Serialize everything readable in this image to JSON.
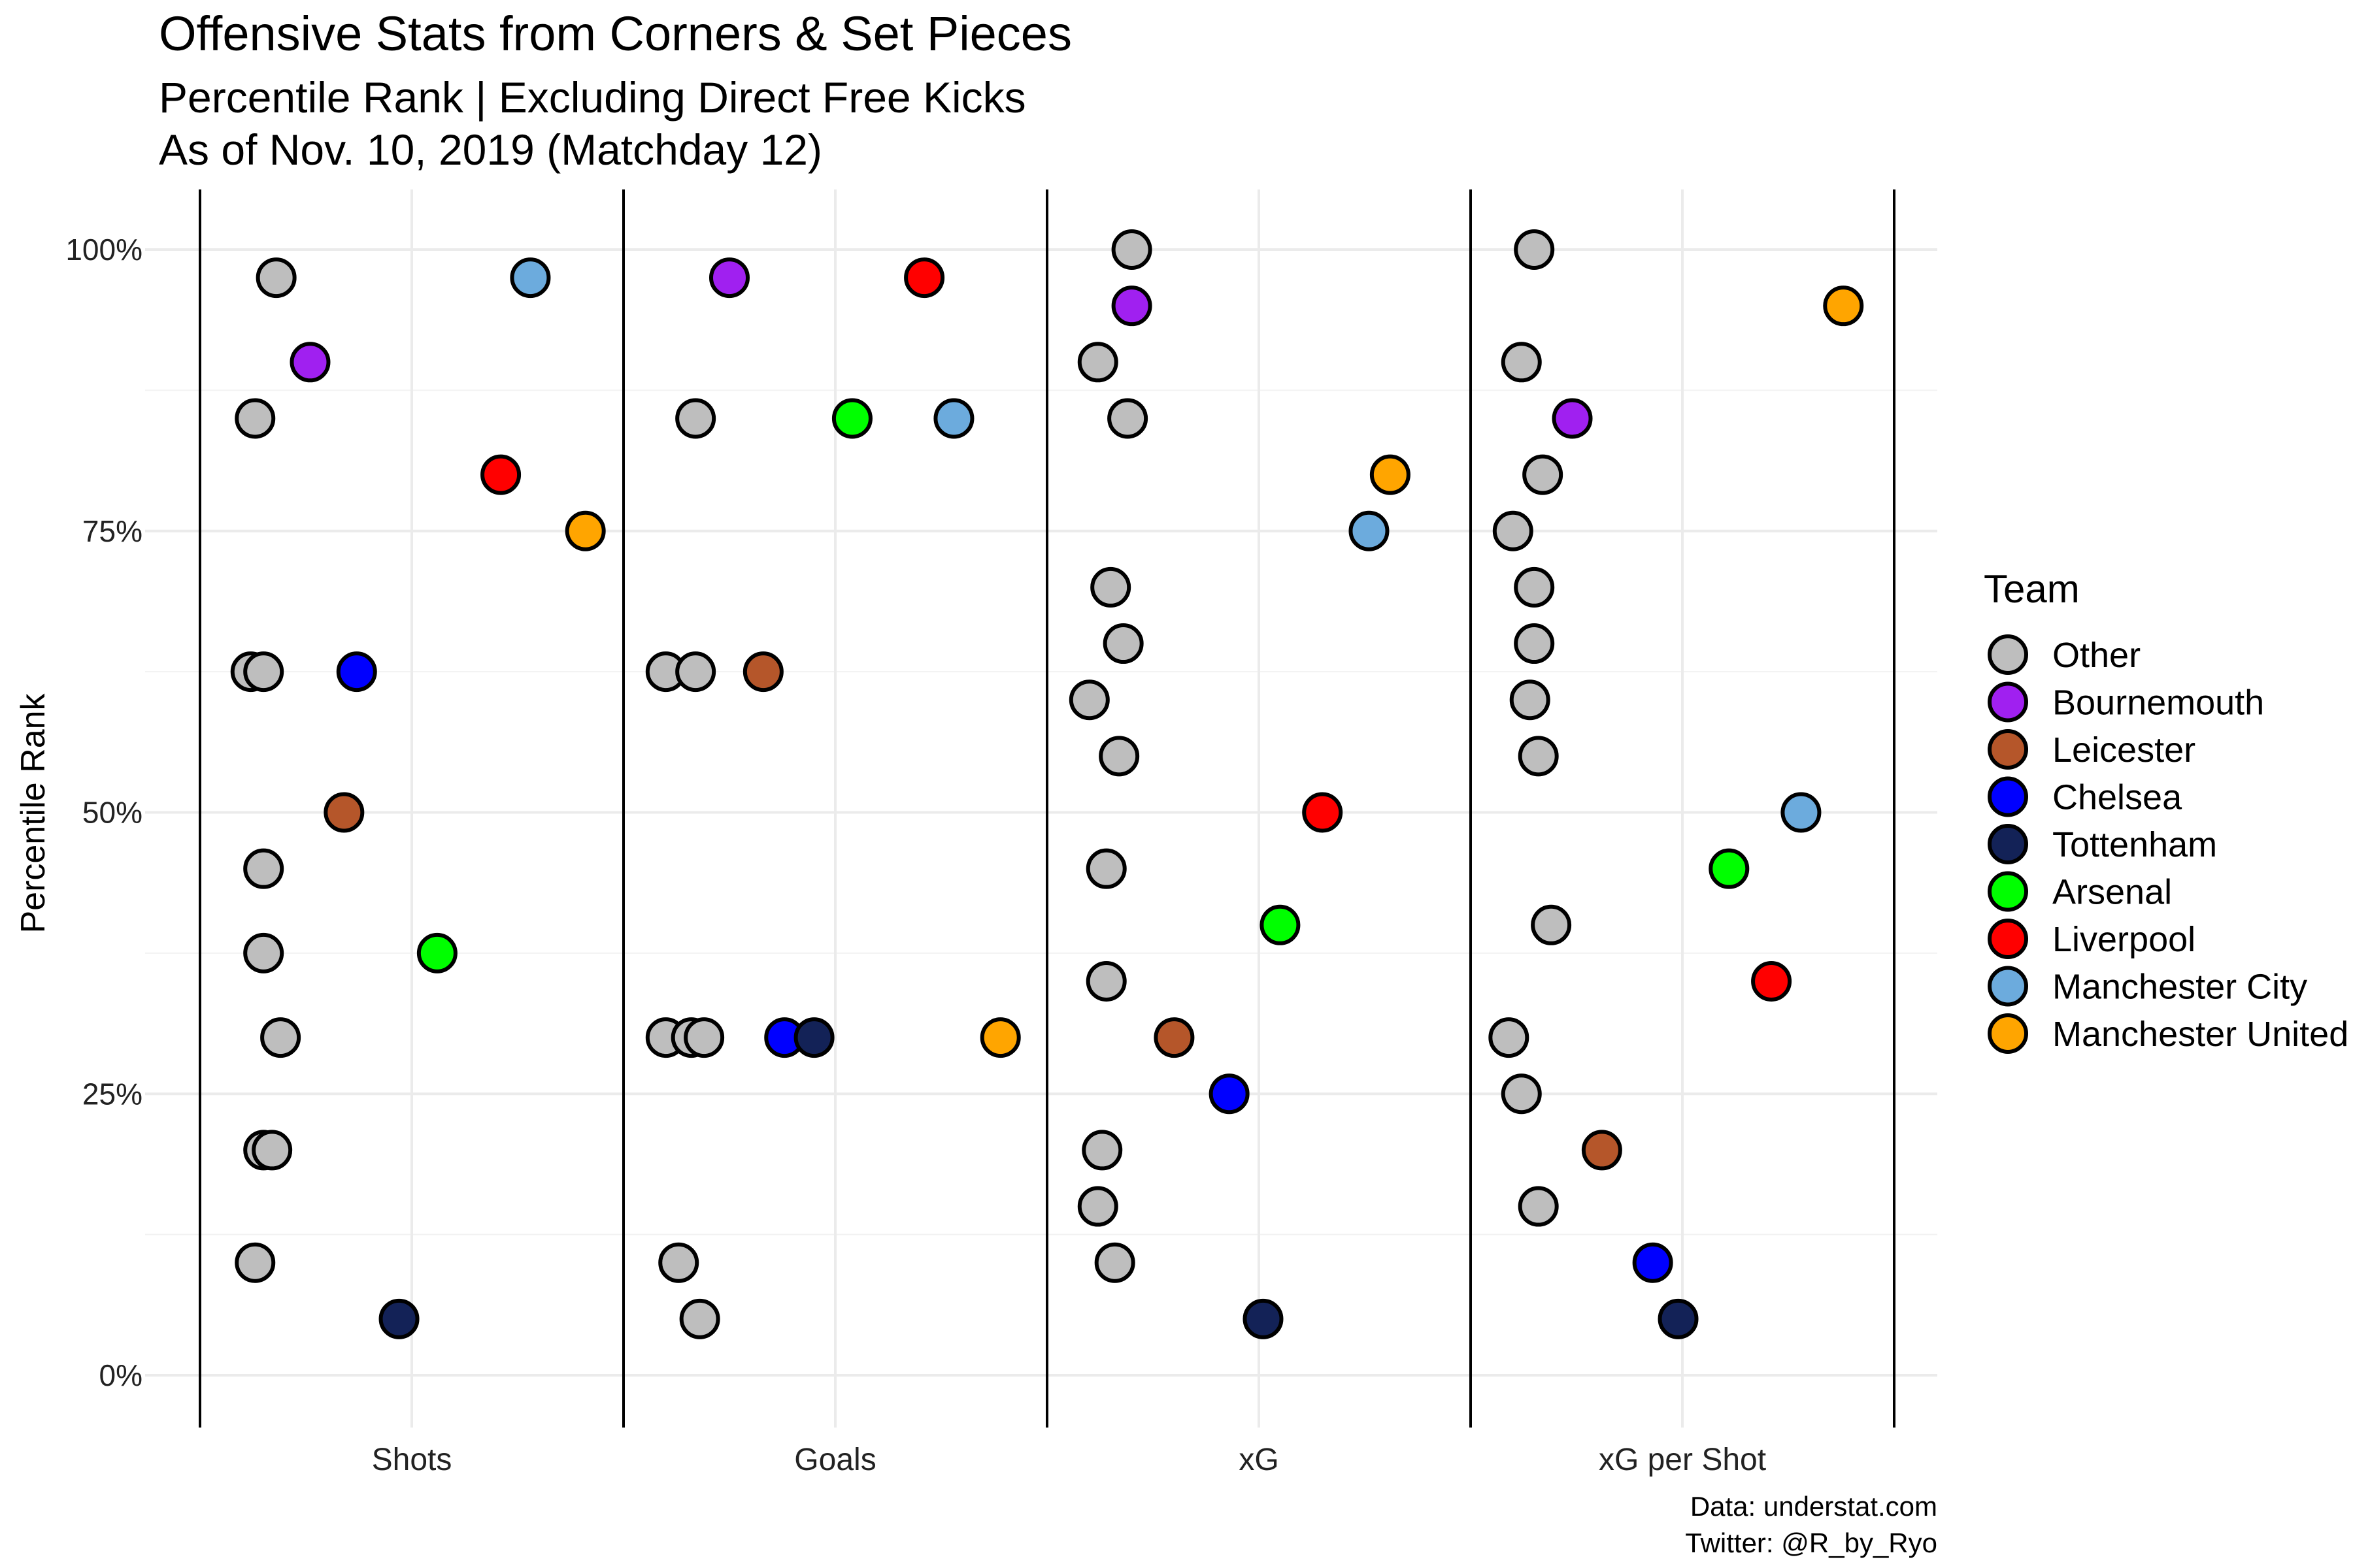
{
  "chart_data": {
    "type": "scatter",
    "title": "Offensive Stats from Corners & Set Pieces",
    "subtitle_lines": [
      "Percentile Rank | Excluding Direct Free Kicks",
      "As of Nov. 10, 2019 (Matchday 12)"
    ],
    "ylabel": "Percentile Rank",
    "ylim": [
      0,
      100
    ],
    "yticks": [
      "0%",
      "25%",
      "50%",
      "75%",
      "100%"
    ],
    "categories": [
      "Shots",
      "Goals",
      "xG",
      "xG per Shot"
    ],
    "grid": true,
    "legend": {
      "title": "Team",
      "position": "right",
      "items": [
        {
          "name": "Other",
          "color": "#bebebe"
        },
        {
          "name": "Bournemouth",
          "color": "#a020f0"
        },
        {
          "name": "Leicester",
          "color": "#b5562a"
        },
        {
          "name": "Chelsea",
          "color": "#0000ff"
        },
        {
          "name": "Tottenham",
          "color": "#132257"
        },
        {
          "name": "Arsenal",
          "color": "#00ff00"
        },
        {
          "name": "Liverpool",
          "color": "#ff0000"
        },
        {
          "name": "Manchester City",
          "color": "#6cabdd"
        },
        {
          "name": "Manchester United",
          "color": "#ffa500"
        }
      ]
    },
    "points": {
      "Shots": [
        {
          "team": "Other",
          "jitter": -0.32,
          "value": 97.5
        },
        {
          "team": "Bournemouth",
          "jitter": -0.24,
          "value": 90
        },
        {
          "team": "Other",
          "jitter": -0.37,
          "value": 85
        },
        {
          "team": "Manchester City",
          "jitter": 0.28,
          "value": 97.5
        },
        {
          "team": "Liverpool",
          "jitter": 0.21,
          "value": 80
        },
        {
          "team": "Manchester United",
          "jitter": 0.41,
          "value": 75
        },
        {
          "team": "Other",
          "jitter": -0.38,
          "value": 62.5
        },
        {
          "team": "Other",
          "jitter": -0.35,
          "value": 62.5
        },
        {
          "team": "Chelsea",
          "jitter": -0.13,
          "value": 62.5
        },
        {
          "team": "Leicester",
          "jitter": -0.16,
          "value": 50
        },
        {
          "team": "Other",
          "jitter": -0.35,
          "value": 45
        },
        {
          "team": "Other",
          "jitter": -0.35,
          "value": 37.5
        },
        {
          "team": "Arsenal",
          "jitter": 0.06,
          "value": 37.5
        },
        {
          "team": "Other",
          "jitter": -0.31,
          "value": 30
        },
        {
          "team": "Other",
          "jitter": -0.35,
          "value": 20
        },
        {
          "team": "Other",
          "jitter": -0.33,
          "value": 20
        },
        {
          "team": "Other",
          "jitter": -0.37,
          "value": 10
        },
        {
          "team": "Tottenham",
          "jitter": -0.03,
          "value": 5
        }
      ],
      "Goals": [
        {
          "team": "Bournemouth",
          "jitter": -0.25,
          "value": 97.5
        },
        {
          "team": "Liverpool",
          "jitter": 0.21,
          "value": 97.5
        },
        {
          "team": "Other",
          "jitter": -0.33,
          "value": 85
        },
        {
          "team": "Arsenal",
          "jitter": 0.04,
          "value": 85
        },
        {
          "team": "Manchester City",
          "jitter": 0.28,
          "value": 85
        },
        {
          "team": "Other",
          "jitter": -0.4,
          "value": 62.5
        },
        {
          "team": "Other",
          "jitter": -0.33,
          "value": 62.5
        },
        {
          "team": "Leicester",
          "jitter": -0.17,
          "value": 62.5
        },
        {
          "team": "Other",
          "jitter": -0.4,
          "value": 30
        },
        {
          "team": "Other",
          "jitter": -0.34,
          "value": 30
        },
        {
          "team": "Other",
          "jitter": -0.31,
          "value": 30
        },
        {
          "team": "Chelsea",
          "jitter": -0.12,
          "value": 30
        },
        {
          "team": "Tottenham",
          "jitter": -0.05,
          "value": 30
        },
        {
          "team": "Manchester United",
          "jitter": 0.39,
          "value": 30
        },
        {
          "team": "Other",
          "jitter": -0.37,
          "value": 10
        },
        {
          "team": "Other",
          "jitter": -0.32,
          "value": 5
        }
      ],
      "xG": [
        {
          "team": "Other",
          "jitter": -0.3,
          "value": 100
        },
        {
          "team": "Bournemouth",
          "jitter": -0.3,
          "value": 95
        },
        {
          "team": "Other",
          "jitter": -0.38,
          "value": 90
        },
        {
          "team": "Other",
          "jitter": -0.31,
          "value": 85
        },
        {
          "team": "Manchester United",
          "jitter": 0.31,
          "value": 80
        },
        {
          "team": "Manchester City",
          "jitter": 0.26,
          "value": 75
        },
        {
          "team": "Other",
          "jitter": -0.35,
          "value": 70
        },
        {
          "team": "Other",
          "jitter": -0.32,
          "value": 65
        },
        {
          "team": "Other",
          "jitter": -0.4,
          "value": 60
        },
        {
          "team": "Other",
          "jitter": -0.33,
          "value": 55
        },
        {
          "team": "Liverpool",
          "jitter": 0.15,
          "value": 50
        },
        {
          "team": "Other",
          "jitter": -0.36,
          "value": 45
        },
        {
          "team": "Arsenal",
          "jitter": 0.05,
          "value": 40
        },
        {
          "team": "Other",
          "jitter": -0.36,
          "value": 35
        },
        {
          "team": "Leicester",
          "jitter": -0.2,
          "value": 30
        },
        {
          "team": "Chelsea",
          "jitter": -0.07,
          "value": 25
        },
        {
          "team": "Other",
          "jitter": -0.37,
          "value": 20
        },
        {
          "team": "Other",
          "jitter": -0.38,
          "value": 15
        },
        {
          "team": "Other",
          "jitter": -0.34,
          "value": 10
        },
        {
          "team": "Tottenham",
          "jitter": 0.01,
          "value": 5
        }
      ],
      "xG per Shot": [
        {
          "team": "Other",
          "jitter": -0.35,
          "value": 100
        },
        {
          "team": "Manchester United",
          "jitter": 0.38,
          "value": 95
        },
        {
          "team": "Other",
          "jitter": -0.38,
          "value": 90
        },
        {
          "team": "Bournemouth",
          "jitter": -0.26,
          "value": 85
        },
        {
          "team": "Other",
          "jitter": -0.33,
          "value": 80
        },
        {
          "team": "Other",
          "jitter": -0.4,
          "value": 75
        },
        {
          "team": "Other",
          "jitter": -0.35,
          "value": 70
        },
        {
          "team": "Other",
          "jitter": -0.35,
          "value": 65
        },
        {
          "team": "Other",
          "jitter": -0.36,
          "value": 60
        },
        {
          "team": "Other",
          "jitter": -0.34,
          "value": 55
        },
        {
          "team": "Manchester City",
          "jitter": 0.28,
          "value": 50
        },
        {
          "team": "Arsenal",
          "jitter": 0.11,
          "value": 45
        },
        {
          "team": "Other",
          "jitter": -0.31,
          "value": 40
        },
        {
          "team": "Liverpool",
          "jitter": 0.21,
          "value": 35
        },
        {
          "team": "Other",
          "jitter": -0.41,
          "value": 30
        },
        {
          "team": "Other",
          "jitter": -0.38,
          "value": 25
        },
        {
          "team": "Leicester",
          "jitter": -0.19,
          "value": 20
        },
        {
          "team": "Other",
          "jitter": -0.34,
          "value": 15
        },
        {
          "team": "Chelsea",
          "jitter": -0.07,
          "value": 10
        },
        {
          "team": "Tottenham",
          "jitter": -0.01,
          "value": 5
        }
      ]
    }
  },
  "caption_lines": [
    "Data: understat.com",
    "Twitter: @R_by_Ryo"
  ]
}
